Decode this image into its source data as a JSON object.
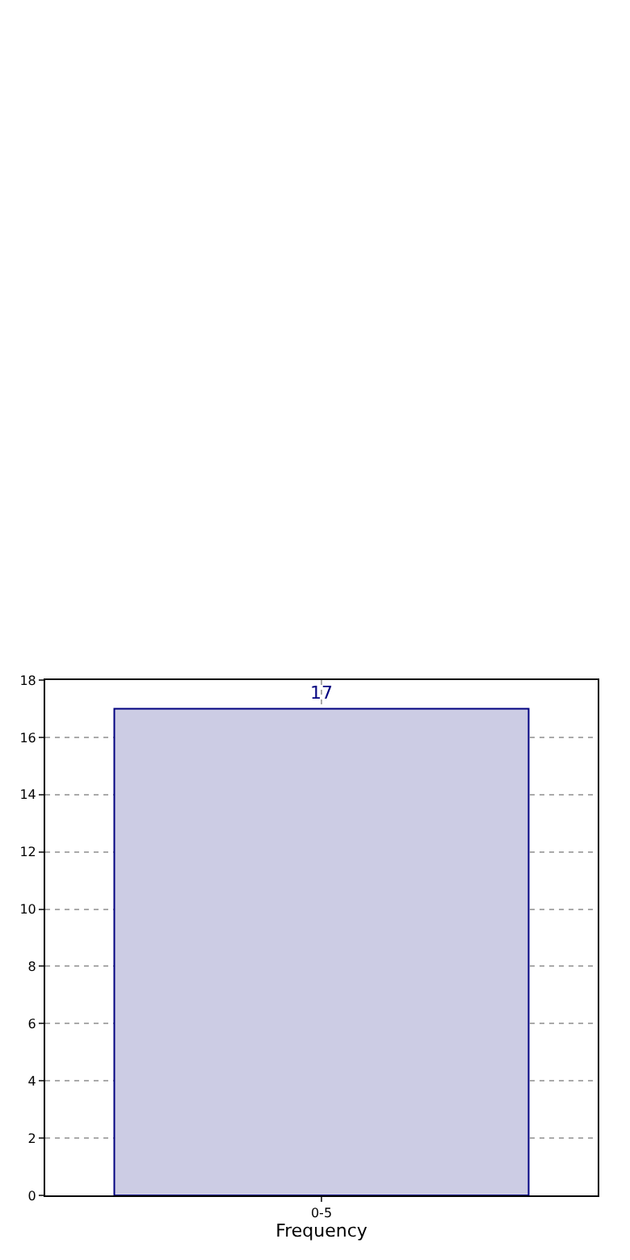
{
  "chart_data": {
    "type": "bar",
    "xlabel": "Frequency",
    "categories": [
      "0-5"
    ],
    "series": [
      {
        "color": "#cccce4",
        "values": [
          17
        ]
      }
    ],
    "ylim": [
      0,
      18
    ],
    "yticks": [
      0,
      2,
      4,
      6,
      8,
      10,
      12,
      14,
      16,
      18
    ],
    "grid": true,
    "data_labels": true
  }
}
